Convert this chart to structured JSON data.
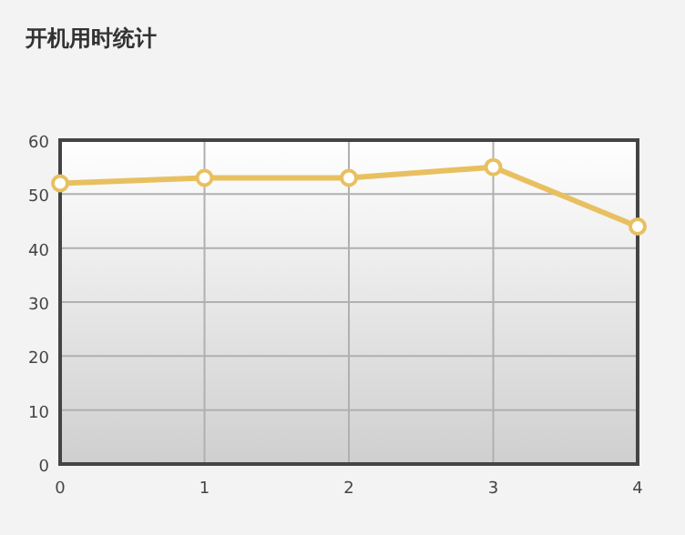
{
  "chart_data": {
    "type": "line",
    "title": "开机用时统计",
    "x": [
      0,
      1,
      2,
      3,
      4
    ],
    "series": [
      {
        "color": "#e8c060",
        "values": [
          52,
          53,
          53,
          55,
          44
        ]
      }
    ],
    "xlim": [
      0,
      4
    ],
    "xticks": [
      0,
      1,
      2,
      3,
      4
    ],
    "ylim": [
      0,
      60
    ],
    "yticks": [
      0,
      10,
      20,
      30,
      40,
      50,
      60
    ],
    "grid": true,
    "marker": "circle",
    "line_style": "solid"
  }
}
